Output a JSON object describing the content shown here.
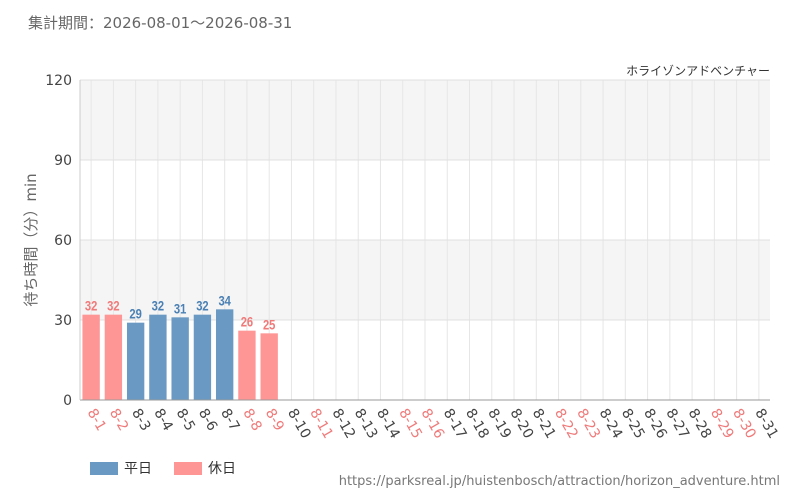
{
  "header": {
    "period": "集計期間：2026-08-01～2026-08-31",
    "attraction": "ホライゾンアドベンチャー"
  },
  "legend": {
    "weekday_label": "平日",
    "holiday_label": "休日"
  },
  "colors": {
    "weekday": "#6a9ac4",
    "holiday": "#ff9696",
    "weekday_text": "#4a80b4",
    "holiday_text": "#f07a7a"
  },
  "source_url": "https://parksreal.jp/huistenbosch/attraction/horizon_adventure.html",
  "chart_data": {
    "type": "bar",
    "ylabel": "待ち時間（分）min",
    "ylim": [
      0,
      120
    ],
    "yticks": [
      0,
      30,
      60,
      90,
      120
    ],
    "grid": true,
    "legend_position": "bottom-left",
    "categories": [
      "8-1",
      "8-2",
      "8-3",
      "8-4",
      "8-5",
      "8-6",
      "8-7",
      "8-8",
      "8-9",
      "8-10",
      "8-11",
      "8-12",
      "8-13",
      "8-14",
      "8-15",
      "8-16",
      "8-17",
      "8-18",
      "8-19",
      "8-20",
      "8-21",
      "8-22",
      "8-23",
      "8-24",
      "8-25",
      "8-26",
      "8-27",
      "8-28",
      "8-29",
      "8-30",
      "8-31"
    ],
    "values": [
      32,
      32,
      29,
      32,
      31,
      32,
      34,
      26,
      25,
      null,
      null,
      null,
      null,
      null,
      null,
      null,
      null,
      null,
      null,
      null,
      null,
      null,
      null,
      null,
      null,
      null,
      null,
      null,
      null,
      null,
      null
    ],
    "day_types": [
      "holiday",
      "holiday",
      "weekday",
      "weekday",
      "weekday",
      "weekday",
      "weekday",
      "holiday",
      "holiday",
      "weekday",
      "holiday",
      "weekday",
      "weekday",
      "weekday",
      "holiday",
      "holiday",
      "weekday",
      "weekday",
      "weekday",
      "weekday",
      "weekday",
      "holiday",
      "holiday",
      "weekday",
      "weekday",
      "weekday",
      "weekday",
      "weekday",
      "holiday",
      "holiday",
      "weekday"
    ]
  }
}
